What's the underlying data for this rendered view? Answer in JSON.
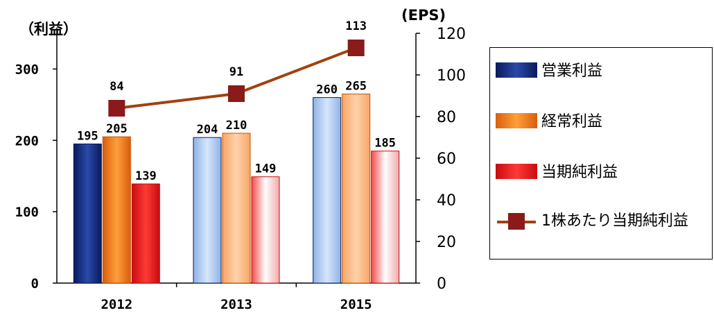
{
  "left_unit": "（利益）",
  "right_unit": "(EPS)",
  "chart_data": {
    "type": "bar",
    "categories": [
      "2012",
      "2013",
      "2015"
    ],
    "series": [
      {
        "name": "営業利益",
        "values": [
          195,
          204,
          260
        ],
        "color": "#1f3d8f"
      },
      {
        "name": "経常利益",
        "values": [
          205,
          210,
          265
        ],
        "color": "#f07c22"
      },
      {
        "name": "当期純利益",
        "values": [
          139,
          149,
          185
        ],
        "color": "#e8151b"
      }
    ],
    "line_series": {
      "name": "1株あたり当期純利益",
      "values": [
        84,
        91,
        113
      ],
      "color": "#a0420f",
      "marker_color": "#8b1a1a",
      "axis": "right"
    },
    "ylim": [
      0,
      350
    ],
    "y_ticks": [
      0,
      100,
      200,
      300
    ],
    "y2lim": [
      0,
      120
    ],
    "y2_ticks": [
      0,
      20,
      40,
      60,
      80,
      100,
      120
    ],
    "grid": false,
    "legend_position": "right"
  }
}
